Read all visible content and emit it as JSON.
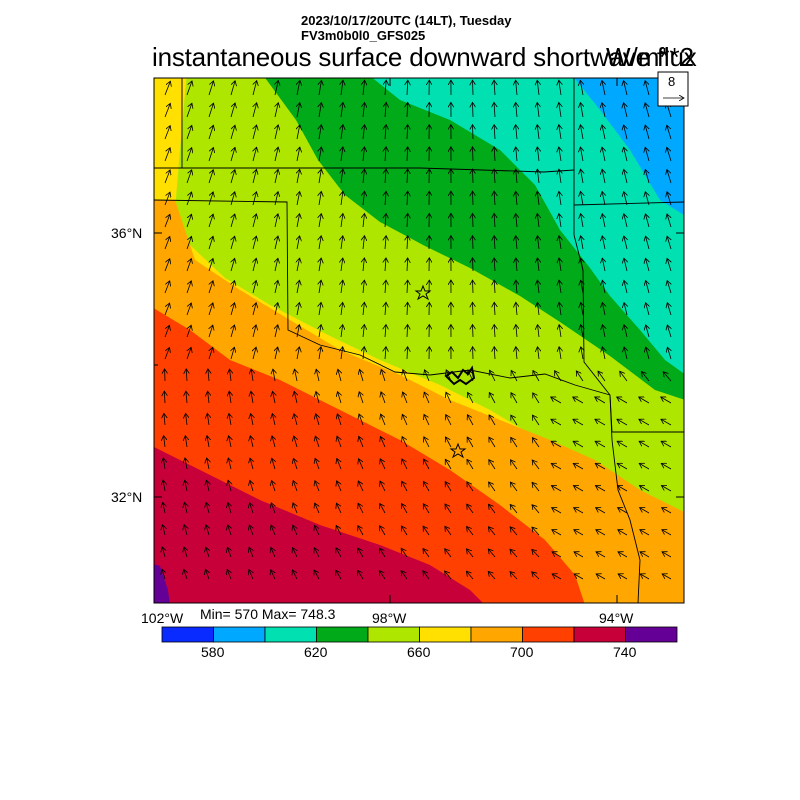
{
  "header": {
    "line1": "2023/10/17/20UTC (14LT), Tuesday",
    "line2": "FV3m0b0l0_GFS025"
  },
  "title": "instantaneous surface downward shortwave flux",
  "units": "W/m**2",
  "vector_reference": {
    "magnitude_label": "8"
  },
  "stats_text": "Min= 570 Max= 748.3",
  "axes": {
    "lat_labels": [
      "36°N",
      "32°N"
    ],
    "lon_labels": [
      "102°W",
      "98°W",
      "94°W"
    ]
  },
  "colorbar": {
    "colors": [
      "#0a2bff",
      "#00a8ff",
      "#00e0b0",
      "#00aa18",
      "#aee600",
      "#ffe000",
      "#ffa600",
      "#ff4000",
      "#c8003a",
      "#640096"
    ],
    "tick_labels": [
      "580",
      "620",
      "660",
      "700",
      "740"
    ],
    "levels": [
      580,
      600,
      620,
      640,
      660,
      680,
      700,
      720,
      740
    ]
  },
  "chart_data": {
    "type": "heatmap",
    "title": "instantaneous surface downward shortwave flux",
    "units": "W/m**2",
    "min": 570,
    "max": 748.3,
    "markers": [
      "star",
      "star"
    ]
  }
}
